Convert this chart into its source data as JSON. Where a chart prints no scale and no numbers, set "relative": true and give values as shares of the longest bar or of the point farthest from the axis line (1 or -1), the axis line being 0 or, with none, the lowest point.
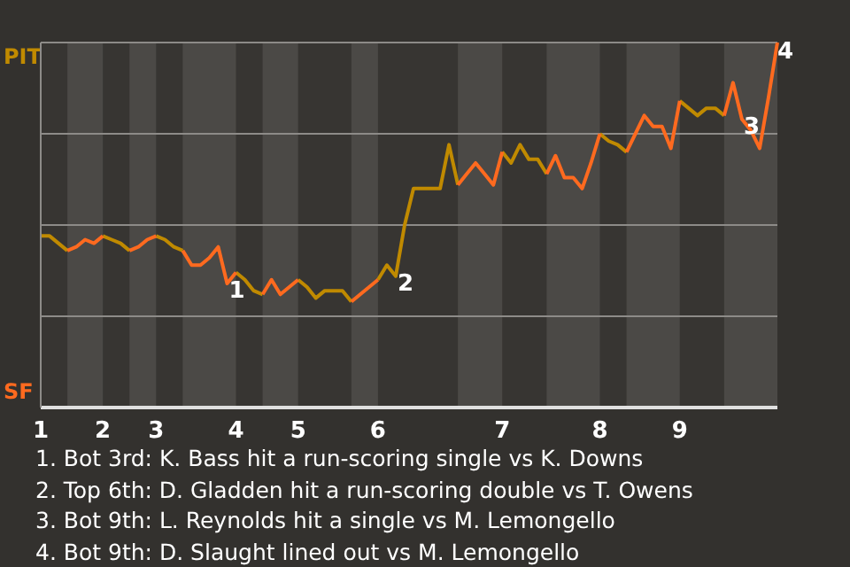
{
  "chart_data": {
    "type": "line",
    "relative": true,
    "categories": [
      "1",
      null,
      null,
      null,
      null,
      null,
      null,
      "2",
      null,
      null,
      null,
      null,
      null,
      "3",
      null,
      null,
      null,
      null,
      null,
      null,
      null,
      null,
      "4",
      null,
      null,
      null,
      null,
      null,
      null,
      "5",
      null,
      null,
      null,
      null,
      null,
      null,
      null,
      null,
      "6",
      null,
      null,
      null,
      null,
      null,
      null,
      null,
      null,
      null,
      null,
      null,
      null,
      null,
      "7",
      null,
      null,
      null,
      null,
      null,
      null,
      null,
      null,
      null,
      null,
      "8",
      null,
      null,
      null,
      null,
      null,
      null,
      null,
      null,
      "9",
      null,
      null,
      null,
      null,
      null,
      null,
      null,
      null,
      null,
      null,
      null
    ],
    "marker": "none",
    "legend": false,
    "series": [
      {
        "color": "#c08a00",
        "values": [
          0.47,
          0.47,
          0.45,
          0.43,
          null,
          null,
          null,
          0.47,
          0.46,
          0.45,
          0.43,
          null,
          null,
          0.47,
          0.46,
          0.44,
          0.43,
          null,
          null,
          null,
          null,
          null,
          0.37,
          0.35,
          0.32,
          0.31,
          null,
          null,
          null,
          0.35,
          0.33,
          0.3,
          0.32,
          0.32,
          0.32,
          0.29,
          null,
          null,
          0.35,
          0.39,
          0.36,
          0.5,
          0.6,
          0.6,
          0.6,
          0.6,
          0.72,
          0.61,
          null,
          null,
          null,
          null,
          0.7,
          0.67,
          0.72,
          0.68,
          0.68,
          0.64,
          null,
          null,
          null,
          null,
          null,
          0.75,
          0.73,
          0.72,
          0.7,
          null,
          null,
          null,
          null,
          null,
          0.84,
          0.82,
          0.8,
          0.82,
          0.82,
          0.8,
          null,
          null,
          null,
          null,
          null,
          null
        ]
      },
      {
        "color": "#ff6a1f",
        "values": [
          null,
          null,
          null,
          0.43,
          0.44,
          0.46,
          0.45,
          0.47,
          null,
          null,
          0.43,
          0.44,
          0.46,
          0.47,
          null,
          null,
          0.43,
          0.39,
          0.39,
          0.41,
          0.44,
          0.34,
          0.37,
          null,
          null,
          0.31,
          0.35,
          0.31,
          0.33,
          0.35,
          null,
          null,
          null,
          null,
          null,
          0.29,
          0.31,
          0.33,
          0.35,
          null,
          null,
          null,
          null,
          null,
          null,
          null,
          null,
          0.61,
          0.64,
          0.67,
          0.64,
          0.61,
          0.7,
          null,
          null,
          null,
          null,
          0.64,
          0.69,
          0.63,
          0.63,
          0.6,
          0.67,
          0.75,
          null,
          null,
          0.7,
          0.75,
          0.8,
          0.77,
          0.77,
          0.71,
          0.84,
          null,
          null,
          null,
          null,
          0.8,
          0.89,
          0.79,
          0.76,
          0.71,
          0.85,
          1.0
        ]
      }
    ],
    "ref_lines": [
      {
        "axis": "y",
        "value": 0.25,
        "color": "#8d8b88"
      },
      {
        "axis": "y",
        "value": 0.5,
        "color": "#8d8b88"
      },
      {
        "axis": "y",
        "value": 0.75,
        "color": "#8d8b88"
      },
      {
        "axis": "y",
        "value": 1,
        "color": "#8d8b88"
      }
    ],
    "annotations": [
      "PIT",
      "SF",
      {
        "text": "1",
        "y": 0.34
      },
      {
        "text": "2",
        "y": 0.36
      },
      {
        "text": "3",
        "y": 0.79
      },
      {
        "text": "4",
        "y": 1.0
      },
      "1. Bot 3rd: K. Bass hit a run-scoring single vs K. Downs",
      "2. Top 6th: D. Gladden hit a run-scoring double vs T. Owens",
      "3. Bot 9th: L. Reynolds hit a single vs M. Lemongello",
      "4. Bot 9th: D. Slaught lined out vs M. Lemongello"
    ]
  }
}
